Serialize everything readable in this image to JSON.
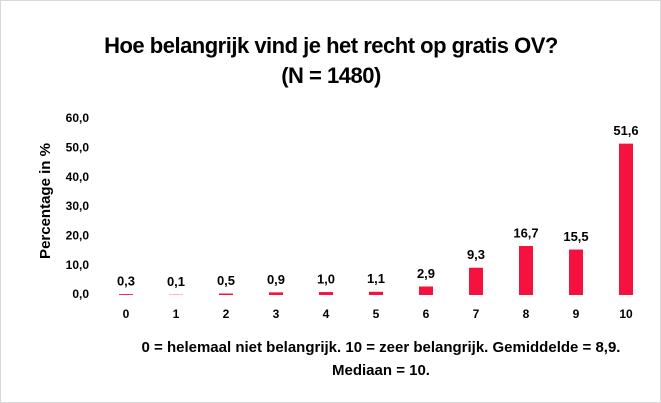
{
  "chart_data": {
    "type": "bar",
    "title": "Hoe belangrijk vind je het recht op gratis OV? (N = 1480)",
    "x_label": "0 = helemaal niet belangrijk. 10 = zeer belangrijk. Gemiddelde = 8,9. Mediaan = 10.",
    "y_label": "Percentage in %",
    "categories": [
      "0",
      "1",
      "2",
      "3",
      "4",
      "5",
      "6",
      "7",
      "8",
      "9",
      "10"
    ],
    "values": [
      0.3,
      0.1,
      0.5,
      0.9,
      1.0,
      1.1,
      2.9,
      9.3,
      16.7,
      15.5,
      51.6
    ],
    "value_labels": [
      "0,3",
      "0,1",
      "0,5",
      "0,9",
      "1,0",
      "1,1",
      "2,9",
      "9,3",
      "16,7",
      "15,5",
      "51,6"
    ],
    "color": "#f5123f",
    "ylim": [
      0,
      60
    ],
    "yticks": [
      {
        "value": 0,
        "label": "0,0"
      },
      {
        "value": 10,
        "label": "10,0"
      },
      {
        "value": 20,
        "label": "20,0"
      },
      {
        "value": 30,
        "label": "30,0"
      },
      {
        "value": 40,
        "label": "40,0"
      },
      {
        "value": 50,
        "label": "50,0"
      },
      {
        "value": 60,
        "label": "60,0"
      }
    ]
  }
}
